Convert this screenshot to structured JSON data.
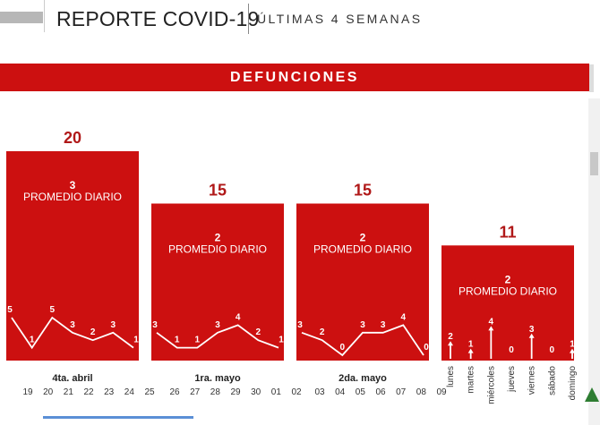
{
  "header": {
    "title": "REPORTE COVID-19",
    "subtitle": "ÚLTIMAS 4 SEMANAS"
  },
  "banner": {
    "title": "DEFUNCIONES"
  },
  "colors": {
    "bar": "#cc1010",
    "total_label": "#b01818",
    "line": "#ffffff",
    "axis_text": "#333333"
  },
  "chart_data": {
    "type": "bar",
    "title": "DEFUNCIONES",
    "categories": [
      "4ta. abril",
      "1ra. mayo",
      "2da. mayo",
      ""
    ],
    "values": [
      20,
      15,
      15,
      11
    ],
    "ylim": [
      0,
      20
    ],
    "avg_label": "PROMEDIO DIARIO",
    "weekly_avg": [
      3,
      2,
      2,
      2
    ],
    "grid": false,
    "legend": "none",
    "days": [
      [
        "19",
        "20",
        "21",
        "22",
        "23",
        "24",
        "25"
      ],
      [
        "26",
        "27",
        "28",
        "29",
        "30",
        "01",
        "02"
      ],
      [
        "03",
        "04",
        "05",
        "06",
        "07",
        "08",
        "09"
      ],
      [
        "lunes",
        "martes",
        "miércoles",
        "jueves",
        "viernes",
        "sábado",
        "domingo"
      ]
    ],
    "daily": [
      [
        5,
        1,
        5,
        3,
        2,
        3,
        1
      ],
      [
        3,
        1,
        1,
        3,
        4,
        2,
        1
      ],
      [
        3,
        2,
        0,
        3,
        3,
        4,
        0
      ],
      [
        2,
        1,
        4,
        0,
        3,
        0,
        1
      ]
    ]
  }
}
